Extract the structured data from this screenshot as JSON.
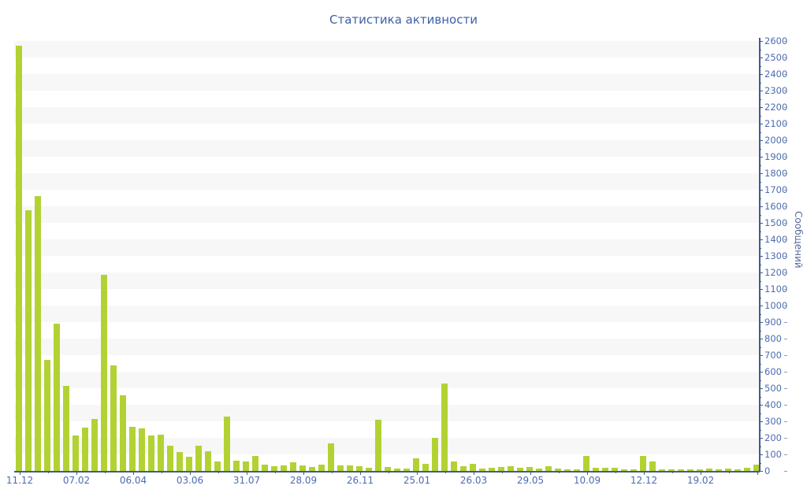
{
  "page": {
    "title": "Статистика активности"
  },
  "chart_data": {
    "type": "bar",
    "title": "Статистика активности",
    "xlabel": "",
    "ylabel": "Сообщений",
    "legend": "none",
    "grid": "horizontal 100-unit alternating bands",
    "y_axis": {
      "side": "right",
      "min": 0,
      "max": 2600,
      "tick_step": 100,
      "minor_tick_step": 50
    },
    "x_axis": {
      "tick_labels": [
        "11.12",
        "07.02",
        "06.04",
        "03.06",
        "31.07",
        "28.09",
        "26.11",
        "25.01",
        "26.03",
        "29.05",
        "10.09",
        "12.12",
        "19.02"
      ],
      "label_every_n_bars": 6
    },
    "values": [
      2570,
      1575,
      1660,
      670,
      890,
      515,
      215,
      260,
      315,
      1185,
      640,
      455,
      265,
      255,
      212,
      218,
      150,
      112,
      85,
      150,
      118,
      55,
      330,
      60,
      56,
      92,
      40,
      27,
      32,
      52,
      35,
      24,
      40,
      165,
      35,
      35,
      30,
      20,
      310,
      24,
      16,
      16,
      75,
      43,
      200,
      530,
      55,
      27,
      43,
      16,
      19,
      24,
      29,
      19,
      24,
      16,
      27,
      16,
      11,
      8,
      90,
      18,
      20,
      19,
      11,
      8,
      90,
      55,
      8,
      11,
      8,
      11,
      8,
      16,
      8,
      16,
      11,
      19,
      40
    ],
    "colors": {
      "bar": "#b2d234",
      "title": "#3e5fa7",
      "tick_label": "#4e6cb0",
      "axis_line": "#44598c",
      "stripe": "#f7f7f7",
      "background": "#ffffff"
    }
  }
}
